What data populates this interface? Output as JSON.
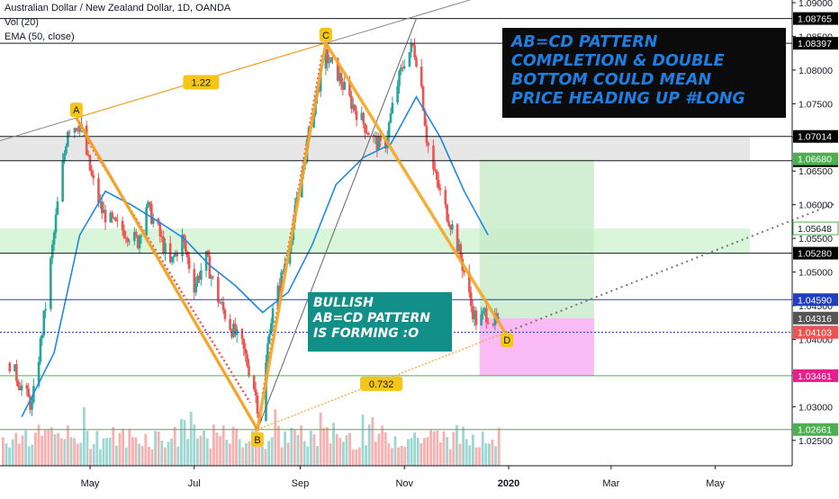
{
  "header": {
    "symbol": "Australian Dollar / New Zealand Dollar, 1D, OANDA",
    "vol_indicator": "Vol (20)",
    "ema_indicator": "EMA (50, close)"
  },
  "notes": {
    "top_right_lines": [
      "AB=CD PATTERN",
      "COMPLETION & DOUBLE",
      "BOTTOM COULD MEAN",
      "PRICE HEADING UP #LONG"
    ],
    "middle_lines": [
      "BULLISH",
      "AB=CD PATTERN",
      "IS FORMING :O"
    ]
  },
  "colors": {
    "pattern": "#f5a524",
    "label_bg": "#f5c518",
    "up": "#26a69a",
    "down": "#ef5350",
    "ema": "#1e88e5",
    "profit_zone": "#c8ebc8",
    "loss_zone": "#f9b3f4",
    "resistance": "#4caf50",
    "blue_line": "#1f3fbf"
  },
  "chart_data": {
    "type": "candlestick",
    "y_axis": {
      "min": 1.0215,
      "max": 1.09,
      "ticks": [
        "1.09000",
        "1.08500",
        "1.08000",
        "1.07500",
        "1.07000",
        "1.06500",
        "1.06000",
        "1.05500",
        "1.05000",
        "1.04500",
        "1.04000",
        "1.03500",
        "1.03000",
        "1.02500"
      ]
    },
    "x_axis": {
      "tick_labels": [
        {
          "label": "May",
          "date": "2019-05-01"
        },
        {
          "label": "Jul",
          "date": "2019-07-01"
        },
        {
          "label": "Sep",
          "date": "2019-09-01"
        },
        {
          "label": "Nov",
          "date": "2019-11-01"
        },
        {
          "label": "2020",
          "date": "2020-01-01"
        },
        {
          "label": "Mar",
          "date": "2020-03-01"
        },
        {
          "label": "May",
          "date": "2020-05-01"
        }
      ],
      "bold_label": "2020"
    },
    "close_path": [
      {
        "date": "2019-03-15",
        "value": 1.0365
      },
      {
        "date": "2019-03-28",
        "value": 1.03
      },
      {
        "date": "2019-04-05",
        "value": 1.045
      },
      {
        "date": "2019-04-12",
        "value": 1.06
      },
      {
        "date": "2019-04-18",
        "value": 1.0715
      },
      {
        "date": "2019-04-25",
        "value": 1.072
      },
      {
        "date": "2019-05-02",
        "value": 1.064
      },
      {
        "date": "2019-05-08",
        "value": 1.059
      },
      {
        "date": "2019-05-15",
        "value": 1.057
      },
      {
        "date": "2019-05-22",
        "value": 1.056
      },
      {
        "date": "2019-05-29",
        "value": 1.0545
      },
      {
        "date": "2019-06-03",
        "value": 1.06
      },
      {
        "date": "2019-06-10",
        "value": 1.056
      },
      {
        "date": "2019-06-17",
        "value": 1.051
      },
      {
        "date": "2019-06-24",
        "value": 1.055
      },
      {
        "date": "2019-07-01",
        "value": 1.048
      },
      {
        "date": "2019-07-08",
        "value": 1.052
      },
      {
        "date": "2019-07-15",
        "value": 1.046
      },
      {
        "date": "2019-07-22",
        "value": 1.042
      },
      {
        "date": "2019-07-29",
        "value": 1.039
      },
      {
        "date": "2019-08-05",
        "value": 1.033
      },
      {
        "date": "2019-08-09",
        "value": 1.0275
      },
      {
        "date": "2019-08-14",
        "value": 1.042
      },
      {
        "date": "2019-08-20",
        "value": 1.048
      },
      {
        "date": "2019-08-27",
        "value": 1.056
      },
      {
        "date": "2019-09-03",
        "value": 1.066
      },
      {
        "date": "2019-09-10",
        "value": 1.076
      },
      {
        "date": "2019-09-16",
        "value": 1.082
      },
      {
        "date": "2019-09-22",
        "value": 1.08
      },
      {
        "date": "2019-09-29",
        "value": 1.076
      },
      {
        "date": "2019-10-06",
        "value": 1.073
      },
      {
        "date": "2019-10-13",
        "value": 1.07
      },
      {
        "date": "2019-10-20",
        "value": 1.068
      },
      {
        "date": "2019-10-27",
        "value": 1.077
      },
      {
        "date": "2019-11-01",
        "value": 1.0815
      },
      {
        "date": "2019-11-06",
        "value": 1.0835
      },
      {
        "date": "2019-11-10",
        "value": 1.08
      },
      {
        "date": "2019-11-14",
        "value": 1.07
      },
      {
        "date": "2019-11-18",
        "value": 1.065
      },
      {
        "date": "2019-11-24",
        "value": 1.06
      },
      {
        "date": "2019-11-30",
        "value": 1.056
      },
      {
        "date": "2019-12-06",
        "value": 1.05
      },
      {
        "date": "2019-12-10",
        "value": 1.045
      },
      {
        "date": "2019-12-14",
        "value": 1.042
      },
      {
        "date": "2019-12-18",
        "value": 1.044
      },
      {
        "date": "2019-12-22",
        "value": 1.043
      },
      {
        "date": "2019-12-27",
        "value": 1.042
      }
    ],
    "ema_50": [
      {
        "date": "2019-03-22",
        "value": 1.0285
      },
      {
        "date": "2019-04-10",
        "value": 1.038
      },
      {
        "date": "2019-04-25",
        "value": 1.0555
      },
      {
        "date": "2019-05-10",
        "value": 1.062
      },
      {
        "date": "2019-05-25",
        "value": 1.06
      },
      {
        "date": "2019-06-10",
        "value": 1.0575
      },
      {
        "date": "2019-06-25",
        "value": 1.055
      },
      {
        "date": "2019-07-10",
        "value": 1.051
      },
      {
        "date": "2019-07-25",
        "value": 1.048
      },
      {
        "date": "2019-08-10",
        "value": 1.044
      },
      {
        "date": "2019-08-25",
        "value": 1.047
      },
      {
        "date": "2019-09-08",
        "value": 1.054
      },
      {
        "date": "2019-09-22",
        "value": 1.063
      },
      {
        "date": "2019-10-08",
        "value": 1.067
      },
      {
        "date": "2019-10-24",
        "value": 1.069
      },
      {
        "date": "2019-11-08",
        "value": 1.076
      },
      {
        "date": "2019-11-22",
        "value": 1.07
      },
      {
        "date": "2019-12-06",
        "value": 1.062
      },
      {
        "date": "2019-12-20",
        "value": 1.0555
      }
    ],
    "pattern_points": [
      {
        "label": "A",
        "date": "2019-04-23",
        "value": 1.0729
      },
      {
        "label": "B",
        "date": "2019-08-07",
        "value": 1.0266
      },
      {
        "label": "C",
        "date": "2019-09-16",
        "value": 1.084
      },
      {
        "label": "D",
        "date": "2019-12-30",
        "value": 1.041
      }
    ],
    "pattern_ratios": [
      {
        "label": "1.22",
        "between": "A-C"
      },
      {
        "label": "0.732",
        "between": "B-D"
      }
    ],
    "horizontal_levels": [
      {
        "value": 1.08765,
        "label": "1.08765",
        "style": "black"
      },
      {
        "value": 1.08397,
        "label": "1.08397",
        "style": "black"
      },
      {
        "value": 1.07014,
        "label": "1.07014",
        "style": "black"
      },
      {
        "value": 1.06653,
        "label": "1.06653",
        "style": "black"
      },
      {
        "value": 1.0528,
        "label": "1.05280",
        "style": "black"
      },
      {
        "value": 1.0459,
        "label": "1.04590",
        "style": "blue"
      },
      {
        "value": 1.04107,
        "label": "1.04107",
        "style": "blue-dotted"
      },
      {
        "value": 1.03461,
        "label": "1.03461",
        "style": "green"
      },
      {
        "value": 1.02661,
        "label": "1.02661",
        "style": "green"
      }
    ],
    "zones": [
      {
        "name": "grey resistance",
        "from": 1.06653,
        "to": 1.07014,
        "color": "#e3e3e3"
      },
      {
        "name": "green support",
        "from": 1.0528,
        "to": 1.05648,
        "color": "#d4f5d4"
      }
    ],
    "position": {
      "entry": 1.04316,
      "target": 1.0668,
      "stop": 1.03461,
      "start_date": "2019-12-15",
      "end_date": "2020-02-20"
    },
    "price_labels": [
      {
        "text": "1.06680",
        "value": 1.0668,
        "bg": "#4caf50",
        "fg": "#ffffff"
      },
      {
        "text": "1.05648",
        "value": 1.05648,
        "bg": "#ffffff",
        "fg": "#131722",
        "border": "#4caf50"
      },
      {
        "text": "1.04316",
        "value": 1.04316,
        "bg": "#555555",
        "fg": "#ffffff"
      },
      {
        "text": "1.04103",
        "value": 1.04103,
        "bg": "#ef5350",
        "fg": "#ffffff"
      },
      {
        "text": "1.03461",
        "value": 1.03461,
        "bg": "#e91e8c",
        "fg": "#ffffff"
      }
    ],
    "grid": false,
    "legend": "top-left"
  }
}
